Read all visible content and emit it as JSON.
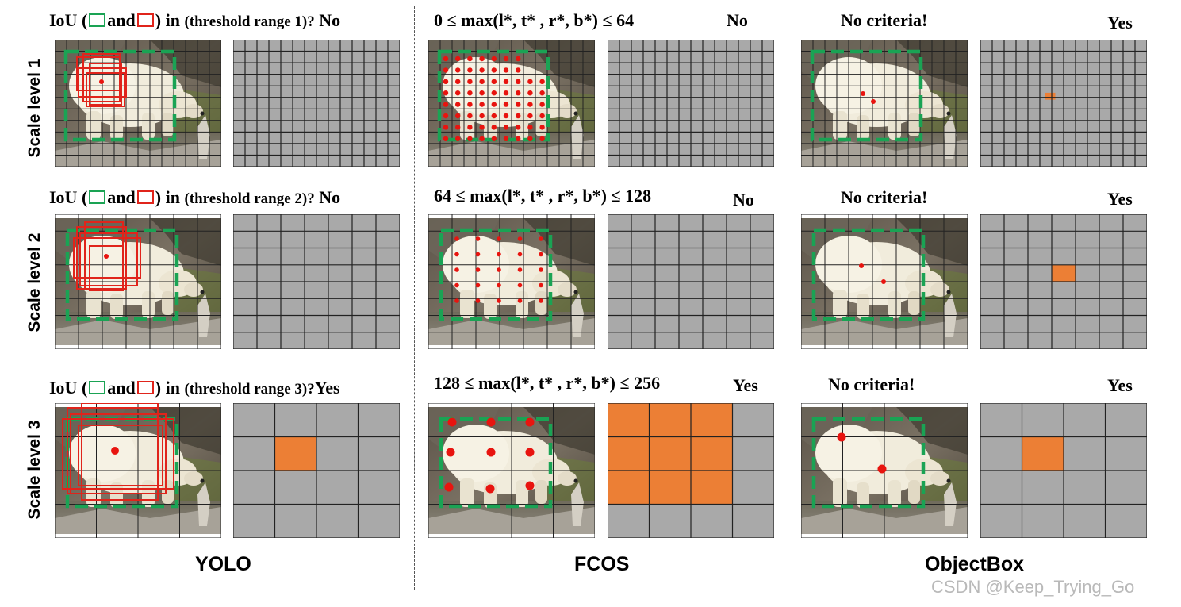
{
  "rows": [
    {
      "label": "Scale level 1"
    },
    {
      "label": "Scale level 2"
    },
    {
      "label": "Scale level 3"
    }
  ],
  "yolo": {
    "name": "YOLO",
    "questions": [
      {
        "pre": "IoU (",
        "and": "and",
        "post": ") in ",
        "range": "(threshold range 1)?",
        "answer": "No"
      },
      {
        "pre": "IoU (",
        "and": "and",
        "post": ") in ",
        "range": "(threshold range 2)?",
        "answer": "No"
      },
      {
        "pre": "IoU (",
        "and": "and",
        "post": ") in ",
        "range": "(threshold range 3)?",
        "answer": "Yes"
      }
    ]
  },
  "fcos": {
    "name": "FCOS",
    "questions": [
      {
        "text": "0 ≤ max(l*, t* , r*, b*) ≤ 64",
        "answer": "No"
      },
      {
        "text": "64 ≤ max(l*, t* , r*, b*) ≤ 128",
        "answer": "No"
      },
      {
        "text": "128 ≤ max(l*, t* , r*, b*) ≤ 256",
        "answer": "Yes"
      }
    ]
  },
  "objectbox": {
    "name": "ObjectBox",
    "questions": [
      {
        "text": "No criteria!",
        "answer": "Yes"
      },
      {
        "text": "No criteria!",
        "answer": "Yes"
      },
      {
        "text": "No criteria!",
        "answer": "Yes"
      }
    ]
  },
  "watermark": "CSDN @Keep_Trying_Go",
  "colors": {
    "gt_box": "#1aa354",
    "anchor_box": "#e0241b",
    "positive_cell": "#ec7f35",
    "grid_bg": "#a9a9a9",
    "center_point": "#e8140f"
  }
}
